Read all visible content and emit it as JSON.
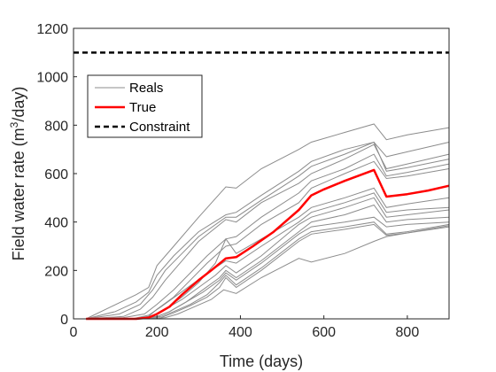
{
  "chart_data": {
    "type": "line",
    "xlabel": "Time (days)",
    "ylabel_prefix": "Field water rate (m",
    "ylabel_sup": "3",
    "ylabel_suffix": "/day)",
    "xlim": [
      0,
      900
    ],
    "ylim": [
      0,
      1200
    ],
    "xticks": [
      0,
      200,
      400,
      600,
      800
    ],
    "yticks": [
      0,
      200,
      400,
      600,
      800,
      1000,
      1200
    ],
    "grid": false,
    "legend_position": "top-left",
    "legend": [
      "Reals",
      "True",
      "Constraint"
    ],
    "colors": {
      "reals": "#8c8c8c",
      "true": "#ff0000",
      "constraint": "#000000"
    },
    "constraint": 1100,
    "true_series": {
      "name": "True",
      "x": [
        30,
        150,
        180,
        200,
        230,
        260,
        300,
        330,
        365,
        390,
        430,
        480,
        540,
        570,
        600,
        650,
        720,
        750,
        800,
        850,
        900
      ],
      "y": [
        0,
        0,
        5,
        20,
        50,
        100,
        160,
        200,
        250,
        255,
        300,
        360,
        450,
        510,
        535,
        570,
        615,
        505,
        515,
        530,
        550
      ]
    },
    "reals": [
      {
        "x": [
          30,
          90,
          150,
          180,
          200,
          240,
          300,
          365,
          390,
          450,
          540,
          570,
          650,
          720,
          750,
          800,
          900
        ],
        "y": [
          0,
          50,
          100,
          130,
          220,
          300,
          420,
          545,
          540,
          620,
          700,
          730,
          770,
          805,
          740,
          760,
          790
        ]
      },
      {
        "x": [
          30,
          100,
          150,
          180,
          200,
          240,
          300,
          365,
          390,
          450,
          540,
          570,
          650,
          720,
          750,
          800,
          900
        ],
        "y": [
          0,
          30,
          70,
          110,
          180,
          260,
          360,
          430,
          440,
          510,
          610,
          650,
          700,
          730,
          670,
          690,
          730
        ]
      },
      {
        "x": [
          30,
          120,
          160,
          190,
          220,
          260,
          300,
          365,
          390,
          450,
          540,
          570,
          650,
          720,
          750,
          800,
          900
        ],
        "y": [
          0,
          10,
          40,
          90,
          160,
          240,
          320,
          410,
          400,
          480,
          560,
          600,
          660,
          720,
          620,
          640,
          680
        ]
      },
      {
        "x": [
          30,
          110,
          160,
          190,
          220,
          260,
          300,
          365,
          390,
          450,
          540,
          570,
          650,
          720,
          750,
          800,
          900
        ],
        "y": [
          0,
          20,
          60,
          120,
          200,
          270,
          340,
          420,
          420,
          490,
          590,
          630,
          680,
          730,
          610,
          625,
          660
        ]
      },
      {
        "x": [
          30,
          120,
          170,
          200,
          240,
          280,
          320,
          365,
          390,
          450,
          540,
          570,
          650,
          720,
          750,
          800,
          900
        ],
        "y": [
          0,
          5,
          20,
          60,
          120,
          190,
          260,
          330,
          340,
          420,
          520,
          570,
          620,
          680,
          590,
          605,
          640
        ]
      },
      {
        "x": [
          30,
          140,
          180,
          200,
          240,
          280,
          320,
          365,
          390,
          450,
          540,
          570,
          650,
          720,
          750,
          800,
          900
        ],
        "y": [
          0,
          0,
          10,
          40,
          90,
          160,
          230,
          300,
          310,
          390,
          480,
          540,
          600,
          650,
          580,
          590,
          620
        ]
      },
      {
        "x": [
          30,
          150,
          190,
          220,
          260,
          300,
          340,
          365,
          390,
          450,
          540,
          570,
          650,
          720,
          750,
          800,
          900
        ],
        "y": [
          0,
          0,
          10,
          40,
          90,
          150,
          230,
          330,
          270,
          330,
          420,
          460,
          500,
          540,
          460,
          475,
          500
        ]
      },
      {
        "x": [
          30,
          140,
          180,
          210,
          250,
          290,
          330,
          365,
          390,
          450,
          540,
          570,
          650,
          720,
          750,
          800,
          900
        ],
        "y": [
          0,
          0,
          15,
          50,
          100,
          150,
          200,
          240,
          230,
          300,
          400,
          440,
          480,
          520,
          440,
          450,
          460
        ]
      },
      {
        "x": [
          30,
          150,
          190,
          220,
          260,
          300,
          340,
          365,
          390,
          450,
          540,
          570,
          650,
          720,
          750,
          800,
          900
        ],
        "y": [
          0,
          0,
          10,
          40,
          80,
          130,
          180,
          220,
          190,
          260,
          390,
          420,
          460,
          500,
          420,
          430,
          450
        ]
      },
      {
        "x": [
          30,
          160,
          200,
          230,
          270,
          310,
          350,
          365,
          390,
          450,
          540,
          570,
          650,
          720,
          750,
          800,
          900
        ],
        "y": [
          0,
          0,
          10,
          30,
          70,
          120,
          170,
          200,
          170,
          240,
          360,
          400,
          430,
          470,
          400,
          410,
          420
        ]
      },
      {
        "x": [
          30,
          160,
          200,
          230,
          270,
          310,
          350,
          365,
          390,
          450,
          540,
          570,
          650,
          720,
          750,
          800,
          900
        ],
        "y": [
          0,
          0,
          10,
          30,
          70,
          110,
          160,
          190,
          160,
          230,
          350,
          380,
          400,
          420,
          380,
          390,
          400
        ]
      },
      {
        "x": [
          30,
          170,
          210,
          240,
          280,
          320,
          350,
          365,
          390,
          450,
          540,
          570,
          650,
          720,
          750,
          800,
          900
        ],
        "y": [
          0,
          0,
          10,
          30,
          60,
          100,
          150,
          180,
          140,
          210,
          330,
          360,
          380,
          400,
          350,
          360,
          390
        ]
      },
      {
        "x": [
          30,
          170,
          210,
          240,
          280,
          320,
          350,
          365,
          390,
          450,
          540,
          570,
          650,
          720,
          750,
          800,
          900
        ],
        "y": [
          0,
          0,
          5,
          25,
          55,
          90,
          130,
          170,
          130,
          200,
          320,
          350,
          370,
          390,
          345,
          355,
          385
        ]
      },
      {
        "x": [
          30,
          180,
          220,
          250,
          290,
          330,
          360,
          390,
          450,
          540,
          570,
          650,
          720,
          750,
          800,
          900
        ],
        "y": [
          0,
          0,
          5,
          20,
          50,
          80,
          120,
          105,
          170,
          250,
          235,
          270,
          320,
          340,
          355,
          380
        ]
      }
    ]
  }
}
